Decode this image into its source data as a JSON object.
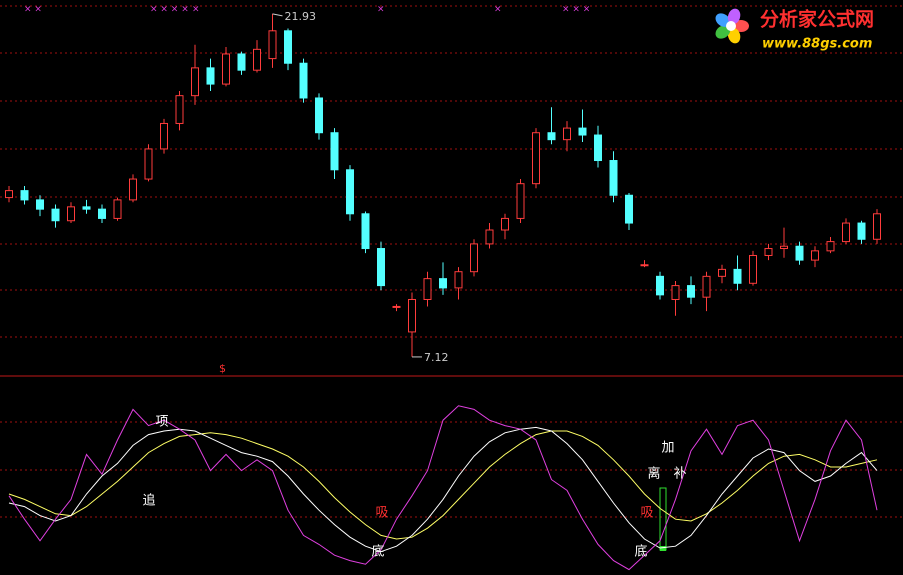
{
  "chart_data": [
    {
      "type": "candlestick",
      "up_color": "#ff3c3c",
      "down_color": "#54ffff",
      "ylim": [
        6.34,
        22.53
      ],
      "open": [
        14.0,
        14.3,
        13.9,
        13.5,
        13.0,
        13.6,
        13.5,
        13.1,
        13.9,
        14.8,
        16.1,
        17.2,
        18.4,
        19.6,
        18.9,
        20.2,
        19.5,
        20.0,
        21.2,
        19.8,
        18.3,
        16.8,
        15.2,
        13.3,
        11.8,
        9.3,
        8.2,
        9.6,
        10.5,
        10.1,
        10.8,
        12.0,
        12.6,
        13.1,
        14.6,
        16.8,
        16.5,
        17.0,
        16.7,
        15.6,
        14.1,
        11.1,
        10.6,
        9.6,
        10.2,
        9.7,
        10.6,
        10.9,
        10.3,
        11.5,
        11.8,
        11.9,
        11.3,
        11.7,
        12.1,
        12.9,
        12.2
      ],
      "high": [
        14.5,
        14.5,
        14.1,
        13.7,
        13.8,
        13.9,
        13.7,
        14.0,
        15.0,
        16.3,
        17.4,
        18.6,
        20.6,
        20.0,
        20.5,
        20.3,
        20.8,
        21.93,
        21.3,
        20.0,
        18.5,
        17.0,
        15.4,
        13.4,
        12.1,
        9.4,
        9.9,
        10.8,
        11.2,
        11.0,
        12.2,
        12.9,
        13.3,
        14.8,
        17.0,
        17.9,
        17.3,
        17.8,
        17.1,
        16.0,
        14.2,
        11.3,
        10.8,
        10.4,
        10.6,
        10.8,
        11.1,
        11.5,
        11.7,
        12.0,
        12.7,
        12.1,
        11.9,
        12.3,
        13.1,
        13.0,
        13.5
      ],
      "low": [
        13.8,
        13.7,
        13.2,
        12.7,
        12.9,
        13.3,
        12.9,
        13.0,
        13.8,
        14.7,
        15.9,
        16.9,
        18.0,
        18.6,
        18.8,
        19.3,
        19.4,
        19.6,
        19.5,
        18.1,
        16.5,
        14.8,
        13.0,
        11.6,
        10.0,
        9.1,
        7.12,
        9.3,
        9.8,
        9.6,
        10.6,
        11.8,
        12.2,
        12.9,
        14.4,
        16.3,
        16.0,
        16.4,
        15.3,
        13.8,
        12.6,
        11.0,
        9.6,
        8.9,
        9.4,
        9.1,
        10.3,
        10.0,
        10.2,
        11.3,
        11.4,
        11.1,
        11.0,
        11.6,
        12.0,
        12.0,
        12.0
      ],
      "close": [
        14.3,
        13.9,
        13.5,
        13.0,
        13.6,
        13.5,
        13.1,
        13.9,
        14.8,
        16.1,
        17.2,
        18.4,
        19.6,
        18.9,
        20.2,
        19.5,
        20.4,
        21.2,
        19.8,
        18.3,
        16.8,
        15.2,
        13.3,
        11.8,
        10.2,
        9.3,
        9.6,
        10.5,
        10.1,
        10.8,
        12.0,
        12.6,
        13.1,
        14.6,
        16.8,
        16.5,
        17.0,
        16.7,
        15.6,
        14.1,
        12.9,
        11.1,
        9.8,
        10.2,
        9.7,
        10.6,
        10.9,
        10.3,
        11.5,
        11.8,
        11.9,
        11.3,
        11.7,
        12.1,
        12.9,
        12.2,
        13.3
      ],
      "top_marks": [
        "× ×",
        "× × × ×",
        "×",
        "×",
        "×",
        "× × ×"
      ],
      "signal_mark": "$",
      "logo": {
        "title": "分析家公式网",
        "url": "www.88gs.com"
      }
    },
    {
      "type": "line",
      "ylim": [
        0,
        100
      ],
      "series": [
        {
          "color": "#e040e0",
          "values": [
            44,
            31,
            19,
            31,
            42,
            67,
            56,
            75,
            92,
            83,
            86,
            81,
            75,
            58,
            67,
            58,
            64,
            58,
            36,
            22,
            17,
            11,
            8,
            6,
            14,
            31,
            44,
            58,
            86,
            94,
            92,
            86,
            83,
            81,
            75,
            53,
            47,
            31,
            17,
            8,
            3,
            11,
            19,
            42,
            69,
            81,
            67,
            83,
            86,
            75,
            47,
            19,
            42,
            69,
            86,
            75,
            36
          ]
        },
        {
          "color": "#ffffff",
          "values": [
            40,
            38,
            33,
            30,
            33,
            45,
            55,
            62,
            72,
            78,
            80,
            81,
            80,
            76,
            72,
            68,
            66,
            63,
            55,
            45,
            36,
            28,
            21,
            16,
            13,
            16,
            22,
            31,
            42,
            55,
            66,
            74,
            79,
            81,
            82,
            80,
            73,
            64,
            52,
            40,
            29,
            20,
            15,
            16,
            22,
            33,
            45,
            55,
            65,
            70,
            68,
            58,
            52,
            55,
            62,
            68,
            58
          ]
        },
        {
          "color": "#ffff66",
          "values": [
            45,
            42,
            38,
            34,
            33,
            38,
            45,
            52,
            60,
            68,
            73,
            77,
            78,
            79,
            78,
            76,
            73,
            70,
            66,
            60,
            52,
            43,
            35,
            28,
            22,
            20,
            21,
            26,
            33,
            42,
            51,
            60,
            67,
            73,
            78,
            80,
            80,
            77,
            72,
            64,
            55,
            45,
            37,
            31,
            30,
            34,
            40,
            47,
            55,
            62,
            66,
            67,
            64,
            60,
            60,
            62,
            64
          ]
        }
      ],
      "annotations": [
        {
          "text": "项",
          "color": "#ffffff"
        },
        {
          "text": "追",
          "color": "#ffffff"
        },
        {
          "text": "吸",
          "color": "#ff3030"
        },
        {
          "text": "底",
          "color": "#ffffff"
        },
        {
          "text": "吸",
          "color": "#ff3030"
        },
        {
          "text": "底",
          "color": "#ffffff"
        },
        {
          "text": "离",
          "color": "#ffffff"
        },
        {
          "text": "补",
          "color": "#ffffff"
        },
        {
          "text": "加",
          "color": "#ffffff"
        }
      ]
    }
  ]
}
